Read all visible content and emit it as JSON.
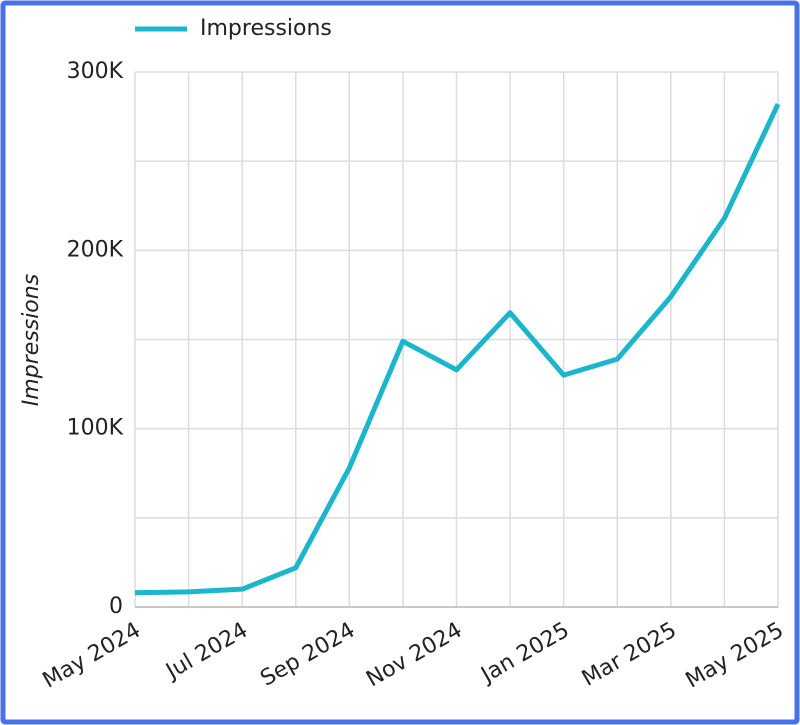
{
  "chart_data": {
    "type": "line",
    "categories": [
      "May 2024",
      null,
      "Jul 2024",
      null,
      "Sep 2024",
      null,
      "Nov 2024",
      null,
      "Jan 2025",
      null,
      "Mar 2025",
      null,
      "May 2025"
    ],
    "series": [
      {
        "name": "Impressions",
        "color": "#1bb5cc",
        "values": [
          8000,
          8500,
          10000,
          22000,
          78000,
          149000,
          133000,
          165000,
          130000,
          139000,
          174000,
          218000,
          282000
        ]
      }
    ],
    "y_label": "Impressions",
    "ylim": [
      0,
      300000
    ],
    "yticks": [
      0,
      {
        "value": 100000,
        "label": "100K"
      },
      {
        "value": 200000,
        "label": "200K"
      },
      {
        "value": 300000,
        "label": "300K"
      }
    ],
    "minor_yticks": [
      50000,
      150000,
      250000
    ],
    "grid": true,
    "legend": "top"
  }
}
